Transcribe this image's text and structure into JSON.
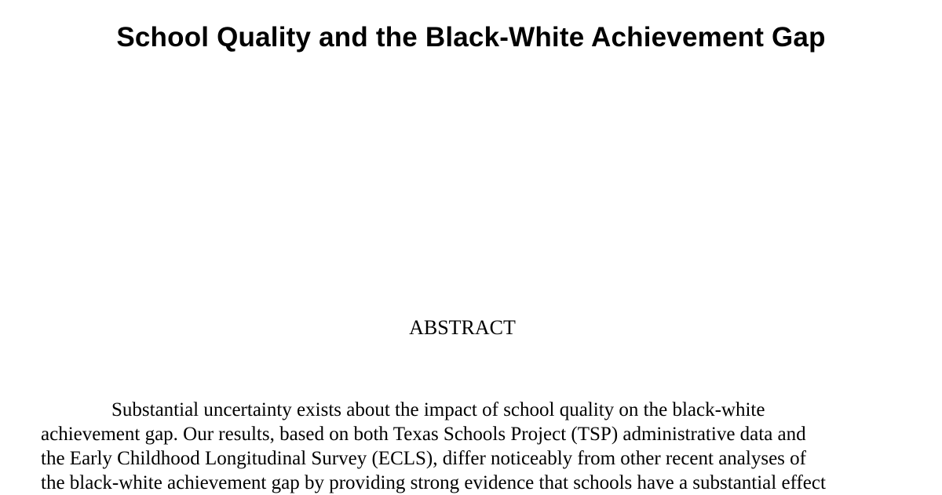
{
  "title": "School Quality and the Black-White Achievement Gap",
  "abstract": {
    "heading": "ABSTRACT",
    "lines": [
      "Substantial uncertainty exists about the impact of school quality on the black-white",
      "achievement gap. Our results, based on both Texas Schools Project (TSP) administrative data and",
      "the Early Childhood Longitudinal Survey (ECLS), differ noticeably from other recent analyses of",
      "the black-white achievement gap by providing strong evidence that schools have a substantial effect"
    ]
  }
}
